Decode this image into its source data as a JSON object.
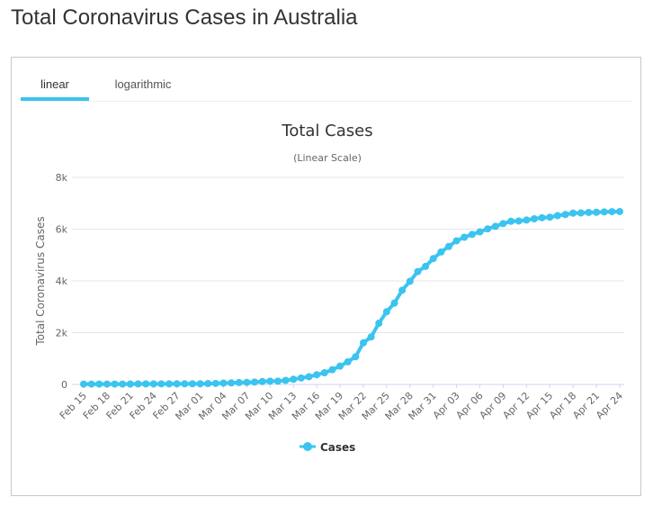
{
  "page": {
    "title": "Total Coronavirus Cases in Australia"
  },
  "tabs": [
    {
      "label": "linear",
      "active": true
    },
    {
      "label": "logarithmic",
      "active": false
    }
  ],
  "chart_data": {
    "type": "line",
    "title": "Total Cases",
    "subtitle": "(Linear Scale)",
    "ylabel": "Total Coronavirus Cases",
    "xlabel": "",
    "ylim": [
      0,
      8000
    ],
    "yticks": [
      {
        "value": 0,
        "label": "0"
      },
      {
        "value": 2000,
        "label": "2k"
      },
      {
        "value": 4000,
        "label": "4k"
      },
      {
        "value": 6000,
        "label": "6k"
      },
      {
        "value": 8000,
        "label": "8k"
      }
    ],
    "x_tick_labels": [
      "Feb 15",
      "Feb 18",
      "Feb 21",
      "Feb 24",
      "Feb 27",
      "Mar 01",
      "Mar 04",
      "Mar 07",
      "Mar 10",
      "Mar 13",
      "Mar 16",
      "Mar 19",
      "Mar 22",
      "Mar 25",
      "Mar 28",
      "Mar 31",
      "Apr 03",
      "Apr 06",
      "Apr 09",
      "Apr 12",
      "Apr 15",
      "Apr 18",
      "Apr 21",
      "Apr 24"
    ],
    "grid": true,
    "legend": "bottom",
    "color": "#3bc4ef",
    "x": [
      "Feb 15",
      "Feb 16",
      "Feb 17",
      "Feb 18",
      "Feb 19",
      "Feb 20",
      "Feb 21",
      "Feb 22",
      "Feb 23",
      "Feb 24",
      "Feb 25",
      "Feb 26",
      "Feb 27",
      "Feb 28",
      "Feb 29",
      "Mar 01",
      "Mar 02",
      "Mar 03",
      "Mar 04",
      "Mar 05",
      "Mar 06",
      "Mar 07",
      "Mar 08",
      "Mar 09",
      "Mar 10",
      "Mar 11",
      "Mar 12",
      "Mar 13",
      "Mar 14",
      "Mar 15",
      "Mar 16",
      "Mar 17",
      "Mar 18",
      "Mar 19",
      "Mar 20",
      "Mar 21",
      "Mar 22",
      "Mar 23",
      "Mar 24",
      "Mar 25",
      "Mar 26",
      "Mar 27",
      "Mar 28",
      "Mar 29",
      "Mar 30",
      "Mar 31",
      "Apr 01",
      "Apr 02",
      "Apr 03",
      "Apr 04",
      "Apr 05",
      "Apr 06",
      "Apr 07",
      "Apr 08",
      "Apr 09",
      "Apr 10",
      "Apr 11",
      "Apr 12",
      "Apr 13",
      "Apr 14",
      "Apr 15",
      "Apr 16",
      "Apr 17",
      "Apr 18",
      "Apr 19",
      "Apr 20",
      "Apr 21",
      "Apr 22",
      "Apr 23",
      "Apr 24"
    ],
    "series": [
      {
        "name": "Cases",
        "values": [
          15,
          15,
          15,
          15,
          15,
          15,
          17,
          21,
          22,
          22,
          23,
          23,
          24,
          25,
          25,
          27,
          33,
          41,
          52,
          60,
          73,
          80,
          92,
          112,
          127,
          128,
          156,
          200,
          250,
          300,
          375,
          452,
          568,
          709,
          874,
          1071,
          1609,
          1836,
          2364,
          2810,
          3143,
          3640,
          3984,
          4361,
          4559,
          4862,
          5116,
          5330,
          5550,
          5687,
          5797,
          5895,
          6010,
          6108,
          6215,
          6303,
          6315,
          6351,
          6400,
          6440,
          6462,
          6522,
          6565,
          6618,
          6625,
          6645,
          6652,
          6666,
          6675,
          6680
        ]
      }
    ]
  }
}
